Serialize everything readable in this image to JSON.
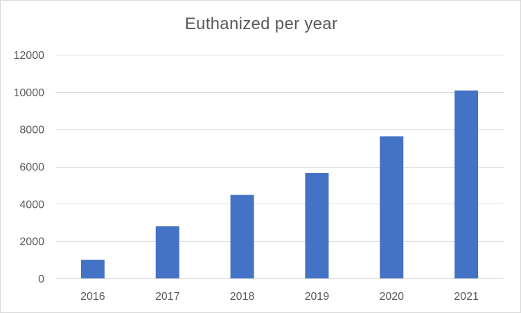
{
  "chart_data": {
    "type": "bar",
    "title": "Euthanized per year",
    "categories": [
      "2016",
      "2017",
      "2018",
      "2019",
      "2020",
      "2021"
    ],
    "values": [
      1000,
      2800,
      4480,
      5650,
      7620,
      10080
    ],
    "xlabel": "",
    "ylabel": "",
    "ylim": [
      0,
      12000
    ],
    "yticks": [
      0,
      2000,
      4000,
      6000,
      8000,
      10000,
      12000
    ],
    "grid": true,
    "legend": "none",
    "bar_color": "#4472C4",
    "grid_color": "#d9d9d9"
  }
}
